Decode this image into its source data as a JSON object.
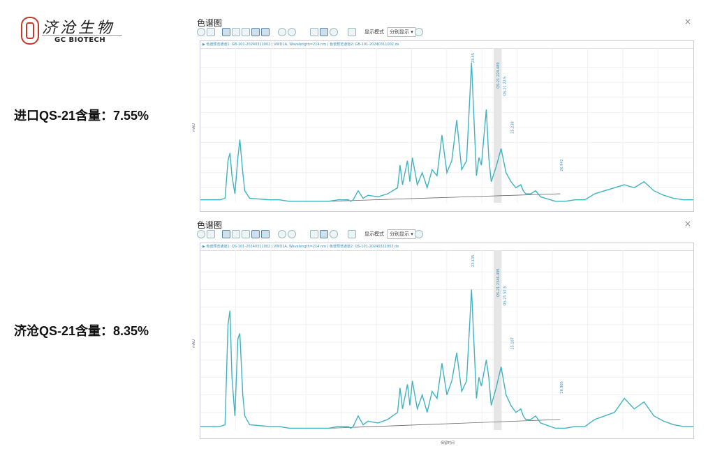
{
  "logo": {
    "company_cn": "济沧生物",
    "company_en": "GC BIOTECH"
  },
  "labels": {
    "top": "进口QS-21含量：7.55%",
    "bottom": "济沧QS-21含量：8.35%"
  },
  "panels": [
    {
      "title": "色谱图",
      "close": "×",
      "mode_label": "显示模式",
      "mode_value": "分别显示 ▾",
      "header": "▶ 色谱预览通道1: GB-101-20240311002 | VWD1A, Wavelength=214 nm | 色谱预览通道2: GB-101-20240311002.dx",
      "y_axis_label": "mAU",
      "x_axis_label": "",
      "peak_labels": [
        "23.45",
        "QS-21 224.489",
        "QS-21 22.5",
        "25.238",
        "26.942"
      ]
    },
    {
      "title": "色谱图",
      "close": "×",
      "mode_label": "显示模式",
      "mode_value": "分别显示 ▾",
      "header": "▶ 色谱预览通道1: QS-101-20240311002 | VWD1A, Wavelength=214 nm | 色谱预览通道2: QS-101-20240311002.dx",
      "y_axis_label": "mAU",
      "x_axis_label": "保留时间",
      "peak_labels": [
        "23.135",
        "QS-21 2346.495",
        "QS-21 52.5",
        "25.107",
        "26.965"
      ]
    }
  ],
  "chart_data": [
    {
      "type": "line",
      "title": "",
      "xlabel": "",
      "ylabel": "mAU",
      "series": [
        {
          "color": "#3fb3bf",
          "x": [
            0,
            4,
            5,
            5.6,
            6,
            6.4,
            7,
            7.6,
            8,
            8.6,
            9,
            10,
            14,
            16,
            18,
            22,
            26,
            28,
            30,
            30.5,
            31,
            32,
            33,
            34,
            36,
            38,
            40,
            40.5,
            41,
            42,
            42.5,
            43,
            44,
            45,
            46,
            47,
            48,
            49,
            50,
            51,
            52,
            53,
            54,
            55,
            56,
            56.5,
            57,
            58,
            58.5,
            59,
            60,
            61,
            62,
            63,
            64,
            65,
            65.5,
            66,
            67,
            68,
            69,
            70,
            72,
            74,
            76,
            78,
            80,
            82,
            84,
            86,
            88,
            90,
            92,
            94,
            96,
            98,
            100
          ],
          "y": [
            2,
            2,
            3,
            28,
            33,
            18,
            6,
            30,
            42,
            20,
            8,
            3,
            2,
            2,
            1,
            1,
            1,
            2,
            2,
            1,
            2,
            8,
            3,
            5,
            4,
            6,
            10,
            25,
            12,
            28,
            14,
            30,
            12,
            20,
            10,
            22,
            18,
            45,
            20,
            28,
            55,
            22,
            28,
            93,
            18,
            30,
            25,
            62,
            30,
            14,
            24,
            36,
            20,
            14,
            10,
            12,
            8,
            6,
            6,
            8,
            4,
            3,
            1,
            1,
            2,
            2,
            6,
            8,
            10,
            12,
            10,
            14,
            8,
            5,
            3,
            2,
            2
          ]
        }
      ],
      "annotations": [
        "23.45",
        "QS-21 224.489",
        "QS-21 22.5",
        "25.238",
        "26.942"
      ]
    },
    {
      "type": "line",
      "title": "",
      "xlabel": "保留时间",
      "ylabel": "mAU",
      "series": [
        {
          "color": "#3fb3bf",
          "x": [
            0,
            4,
            5,
            5.6,
            6,
            6.4,
            7,
            7.6,
            8,
            8.6,
            9,
            10,
            14,
            16,
            18,
            22,
            26,
            28,
            30,
            30.5,
            31,
            32,
            33,
            34,
            36,
            38,
            40,
            40.5,
            41,
            42,
            42.5,
            43,
            44,
            45,
            46,
            47,
            48,
            49,
            50,
            51,
            52,
            53,
            54,
            55,
            56,
            56.5,
            57,
            58,
            58.5,
            59,
            60,
            61,
            62,
            63,
            64,
            65,
            65.5,
            66,
            67,
            68,
            69,
            70,
            72,
            74,
            76,
            78,
            80,
            82,
            84,
            86,
            88,
            90,
            92,
            94,
            96,
            98,
            100
          ],
          "y": [
            2,
            2,
            3,
            60,
            68,
            30,
            8,
            52,
            55,
            20,
            8,
            3,
            2,
            2,
            1,
            1,
            1,
            2,
            2,
            1,
            2,
            8,
            3,
            5,
            4,
            6,
            10,
            24,
            12,
            26,
            14,
            28,
            12,
            20,
            10,
            22,
            18,
            38,
            20,
            28,
            44,
            22,
            28,
            80,
            18,
            30,
            25,
            40,
            30,
            14,
            24,
            36,
            20,
            14,
            10,
            12,
            8,
            6,
            6,
            8,
            4,
            3,
            1,
            1,
            2,
            2,
            6,
            8,
            10,
            18,
            12,
            16,
            8,
            5,
            3,
            2,
            2
          ]
        }
      ],
      "annotations": [
        "23.135",
        "QS-21 2346.495",
        "QS-21 52.5",
        "25.107",
        "26.965"
      ]
    }
  ]
}
